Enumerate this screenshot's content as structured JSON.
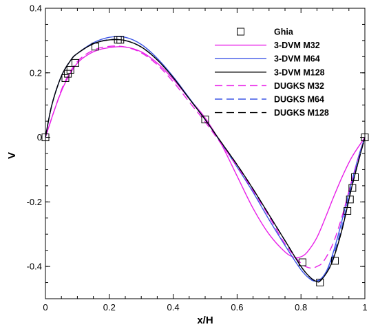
{
  "chart_data": {
    "type": "line",
    "xlabel": "x/H",
    "ylabel": "V",
    "xlim": [
      0,
      1
    ],
    "ylim": [
      -0.5,
      0.4
    ],
    "x_ticks": [
      0,
      0.2,
      0.4,
      0.6,
      0.8,
      1
    ],
    "x_tick_labels": [
      "0",
      "0.2",
      "0.4",
      "0.6",
      "0.8",
      "1"
    ],
    "y_ticks": [
      -0.4,
      -0.2,
      0,
      0.2,
      0.4
    ],
    "y_tick_labels": [
      "-0.4",
      "-0.2",
      "0",
      "0.2",
      "0.4"
    ],
    "grid": false,
    "legend_position": "top-right",
    "series": [
      {
        "name": "Ghia",
        "style": "marker",
        "marker": "square",
        "color": "#000000",
        "x": [
          0.0,
          0.0625,
          0.0703,
          0.0781,
          0.0938,
          0.1563,
          0.2266,
          0.2344,
          0.5,
          0.8047,
          0.8594,
          0.9063,
          0.9453,
          0.9531,
          0.9609,
          0.9688,
          1.0
        ],
        "y": [
          0.0,
          0.1836,
          0.1971,
          0.2092,
          0.2307,
          0.2812,
          0.3025,
          0.3024,
          0.0553,
          -0.3871,
          -0.4499,
          -0.3825,
          -0.228,
          -0.1925,
          -0.1568,
          -0.1234,
          0.0
        ]
      },
      {
        "name": "3-DVM M32",
        "style": "solid",
        "color": "#e81fe8",
        "x": [
          0,
          0.03,
          0.06,
          0.1,
          0.15,
          0.2,
          0.25,
          0.3,
          0.35,
          0.4,
          0.45,
          0.5,
          0.55,
          0.6,
          0.65,
          0.7,
          0.75,
          0.78,
          0.8,
          0.82,
          0.85,
          0.88,
          0.9,
          0.93,
          0.96,
          1.0
        ],
        "y": [
          0.0,
          0.09,
          0.165,
          0.23,
          0.265,
          0.278,
          0.28,
          0.265,
          0.23,
          0.18,
          0.12,
          0.06,
          -0.02,
          -0.12,
          -0.22,
          -0.3,
          -0.355,
          -0.372,
          -0.37,
          -0.355,
          -0.31,
          -0.24,
          -0.19,
          -0.12,
          -0.06,
          0.0
        ]
      },
      {
        "name": "3-DVM M64",
        "style": "solid",
        "color": "#3c55e6",
        "x": [
          0,
          0.02,
          0.05,
          0.08,
          0.1,
          0.15,
          0.2,
          0.25,
          0.3,
          0.35,
          0.4,
          0.45,
          0.5,
          0.55,
          0.6,
          0.65,
          0.7,
          0.75,
          0.8,
          0.83,
          0.85,
          0.87,
          0.89,
          0.92,
          0.95,
          0.98,
          1.0
        ],
        "y": [
          0.0,
          0.1,
          0.19,
          0.24,
          0.26,
          0.293,
          0.31,
          0.31,
          0.288,
          0.245,
          0.188,
          0.122,
          0.055,
          -0.017,
          -0.092,
          -0.17,
          -0.255,
          -0.335,
          -0.41,
          -0.44,
          -0.445,
          -0.43,
          -0.39,
          -0.29,
          -0.17,
          -0.06,
          0.0
        ]
      },
      {
        "name": "3-DVM M128",
        "style": "solid",
        "color": "#000000",
        "x": [
          0,
          0.02,
          0.05,
          0.08,
          0.1,
          0.15,
          0.2,
          0.25,
          0.3,
          0.35,
          0.4,
          0.45,
          0.5,
          0.55,
          0.6,
          0.65,
          0.7,
          0.75,
          0.8,
          0.83,
          0.85,
          0.86,
          0.88,
          0.9,
          0.93,
          0.96,
          1.0
        ],
        "y": [
          0.0,
          0.1,
          0.19,
          0.24,
          0.26,
          0.29,
          0.302,
          0.3,
          0.28,
          0.24,
          0.185,
          0.12,
          0.055,
          -0.015,
          -0.085,
          -0.16,
          -0.24,
          -0.32,
          -0.4,
          -0.435,
          -0.447,
          -0.445,
          -0.42,
          -0.38,
          -0.28,
          -0.15,
          0.0
        ]
      },
      {
        "name": "DUGKS M32",
        "style": "dashed",
        "color": "#e81fe8",
        "x": [
          0,
          0.03,
          0.06,
          0.1,
          0.15,
          0.2,
          0.25,
          0.3,
          0.35,
          0.4,
          0.45,
          0.5,
          0.55,
          0.6,
          0.65,
          0.7,
          0.75,
          0.8,
          0.83,
          0.85,
          0.87,
          0.9,
          0.93,
          0.96,
          1.0
        ],
        "y": [
          0.0,
          0.09,
          0.17,
          0.235,
          0.27,
          0.282,
          0.28,
          0.262,
          0.225,
          0.172,
          0.11,
          0.048,
          -0.02,
          -0.09,
          -0.165,
          -0.245,
          -0.33,
          -0.39,
          -0.405,
          -0.4,
          -0.385,
          -0.33,
          -0.24,
          -0.13,
          0.0
        ]
      },
      {
        "name": "DUGKS M64",
        "style": "dashed",
        "color": "#3c55e6",
        "x": [
          0,
          0.02,
          0.05,
          0.08,
          0.1,
          0.15,
          0.2,
          0.25,
          0.3,
          0.35,
          0.4,
          0.45,
          0.5,
          0.55,
          0.6,
          0.65,
          0.7,
          0.75,
          0.8,
          0.83,
          0.85,
          0.86,
          0.88,
          0.9,
          0.93,
          0.96,
          1.0
        ],
        "y": [
          0.0,
          0.1,
          0.19,
          0.24,
          0.26,
          0.29,
          0.303,
          0.3,
          0.28,
          0.24,
          0.185,
          0.12,
          0.055,
          -0.015,
          -0.085,
          -0.16,
          -0.24,
          -0.32,
          -0.4,
          -0.435,
          -0.445,
          -0.443,
          -0.42,
          -0.37,
          -0.27,
          -0.14,
          0.0
        ]
      },
      {
        "name": "DUGKS M128",
        "style": "dashed",
        "color": "#000000",
        "x": [
          0,
          0.02,
          0.05,
          0.08,
          0.1,
          0.15,
          0.2,
          0.25,
          0.3,
          0.35,
          0.4,
          0.45,
          0.5,
          0.55,
          0.6,
          0.65,
          0.7,
          0.75,
          0.8,
          0.83,
          0.85,
          0.86,
          0.88,
          0.9,
          0.93,
          0.96,
          1.0
        ],
        "y": [
          0.0,
          0.1,
          0.19,
          0.24,
          0.26,
          0.29,
          0.302,
          0.3,
          0.28,
          0.24,
          0.185,
          0.12,
          0.055,
          -0.015,
          -0.085,
          -0.16,
          -0.24,
          -0.32,
          -0.4,
          -0.435,
          -0.447,
          -0.445,
          -0.42,
          -0.38,
          -0.28,
          -0.15,
          0.0
        ]
      }
    ]
  }
}
